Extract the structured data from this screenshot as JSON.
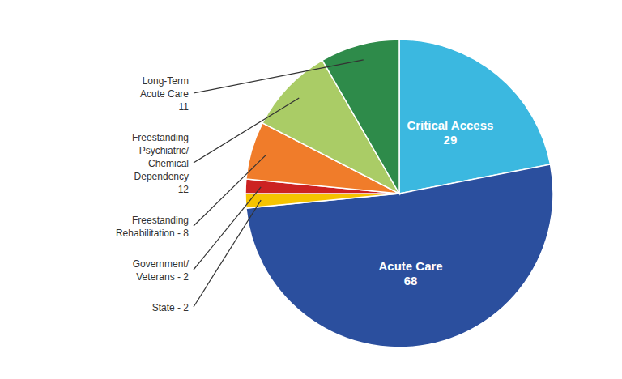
{
  "chart_data": {
    "type": "pie",
    "categories": [
      "Critical Access",
      "Acute Care",
      "State",
      "Government/\nVeterans",
      "Freestanding\nRehabilitation",
      "Freestanding\nPsychiatric/\nChemical\nDependency",
      "Long-Term\nAcute Care"
    ],
    "values": [
      29,
      68,
      2,
      2,
      8,
      12,
      11
    ],
    "colors": [
      "#3BB8E0",
      "#2B4F9E",
      "#F5C300",
      "#CC2222",
      "#F07C2A",
      "#AACC66",
      "#2E8B4A"
    ],
    "data_labels": true,
    "value_labels": [
      "Critical Access\n29",
      "Acute Care\n68",
      "State - 2",
      "Government/\nVeterans - 2",
      "Freestanding\nRehabilitation - 8",
      "Freestanding\nPsychiatric/\nChemical\nDependency\n12",
      "Long-Term\nAcute Care\n11"
    ]
  }
}
